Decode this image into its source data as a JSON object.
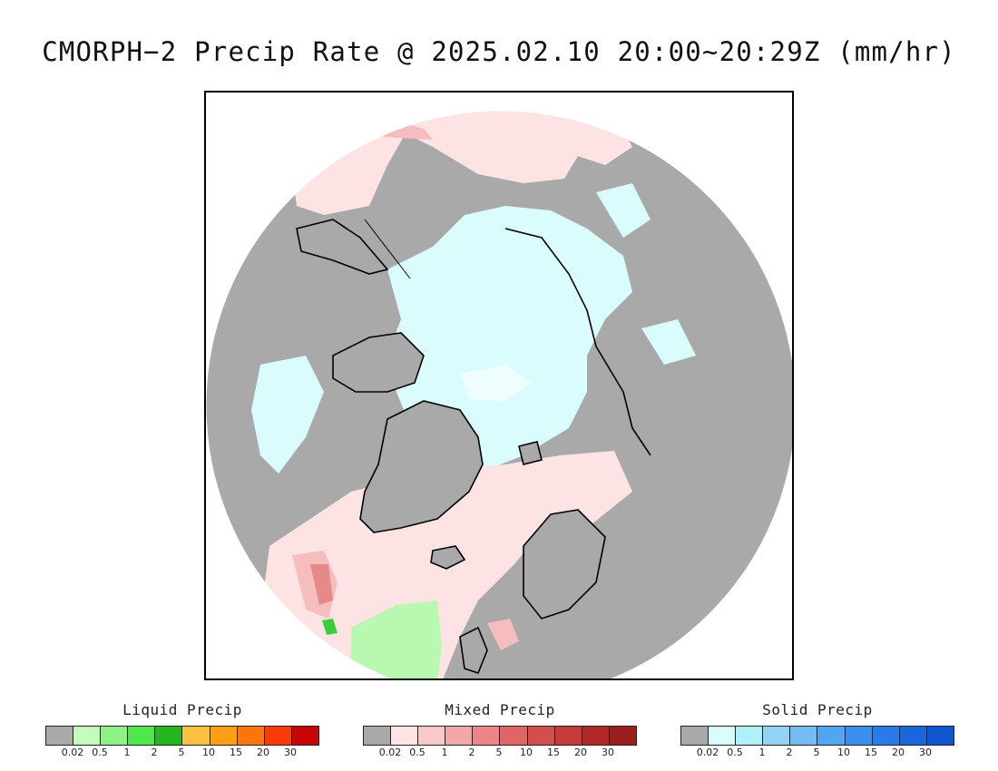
{
  "title": "CMORPH−2 Precip Rate @ 2025.02.10 20:00~20:29Z (mm/hr)",
  "map": {
    "projection": "north polar stereographic",
    "colors": {
      "no_data": "#a9a9a9",
      "mixed_light": "#fde3e3",
      "mixed_mid": "#f5bdbd",
      "mixed_heavy": "#e88989",
      "solid_light": "#dafcfd",
      "solid_lighter": "#eefefe",
      "liquid_light": "#b9f8b0",
      "liquid_heavy": "#3ecc3a",
      "coast": "#000000"
    }
  },
  "legends": [
    {
      "title": "Liquid Precip",
      "colors": [
        "#a9a9a9",
        "#c6fbc0",
        "#8ff284",
        "#4ee64a",
        "#24b51f",
        "#fbc040",
        "#fb9f13",
        "#fb750a",
        "#fb3c0a",
        "#c80505"
      ],
      "ticks": [
        "0.02",
        "0.5",
        "1",
        "2",
        "5",
        "10",
        "15",
        "20",
        "30"
      ]
    },
    {
      "title": "Mixed Precip",
      "colors": [
        "#a9a9a9",
        "#fde3e3",
        "#f9c9c9",
        "#f3a6a6",
        "#ec8585",
        "#e06565",
        "#d54d4d",
        "#c73a3a",
        "#b22828",
        "#9c1f1f"
      ],
      "ticks": [
        "0.02",
        "0.5",
        "1",
        "2",
        "5",
        "10",
        "15",
        "20",
        "30"
      ]
    },
    {
      "title": "Solid Precip",
      "colors": [
        "#a9a9a9",
        "#dafcfd",
        "#aef1fb",
        "#92d3f8",
        "#73bdf5",
        "#50a6f1",
        "#3a8fed",
        "#2a7be6",
        "#1c66dc",
        "#0f55cf"
      ],
      "ticks": [
        "0.02",
        "0.5",
        "1",
        "2",
        "5",
        "10",
        "15",
        "20",
        "30"
      ]
    }
  ]
}
